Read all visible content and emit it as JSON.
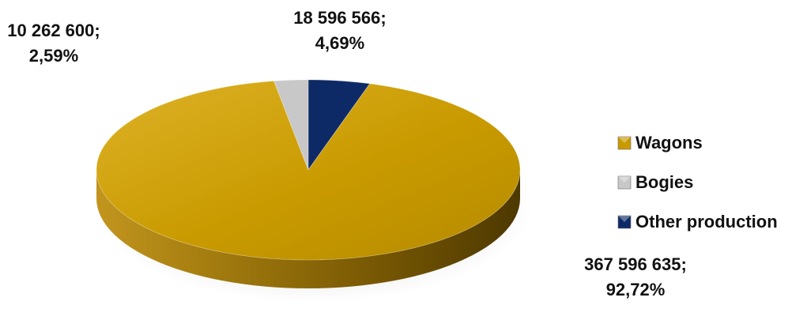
{
  "chart_data": {
    "type": "pie",
    "style": "3d",
    "title": "",
    "legend_position": "right",
    "slices": [
      {
        "name": "Wagons",
        "value": 367596635,
        "percent": 92.72,
        "label_value": "367 596 635;",
        "label_percent": "92,72%",
        "color": "#C99A00"
      },
      {
        "name": "Bogies",
        "value": 10262600,
        "percent": 2.59,
        "label_value": "10 262 600;",
        "label_percent": "2,59%",
        "color": "#C8C8C8"
      },
      {
        "name": "Other production",
        "value": 18596566,
        "percent": 4.69,
        "label_value": "18 596 566;",
        "label_percent": "4,69%",
        "color": "#0E2A66"
      }
    ]
  }
}
